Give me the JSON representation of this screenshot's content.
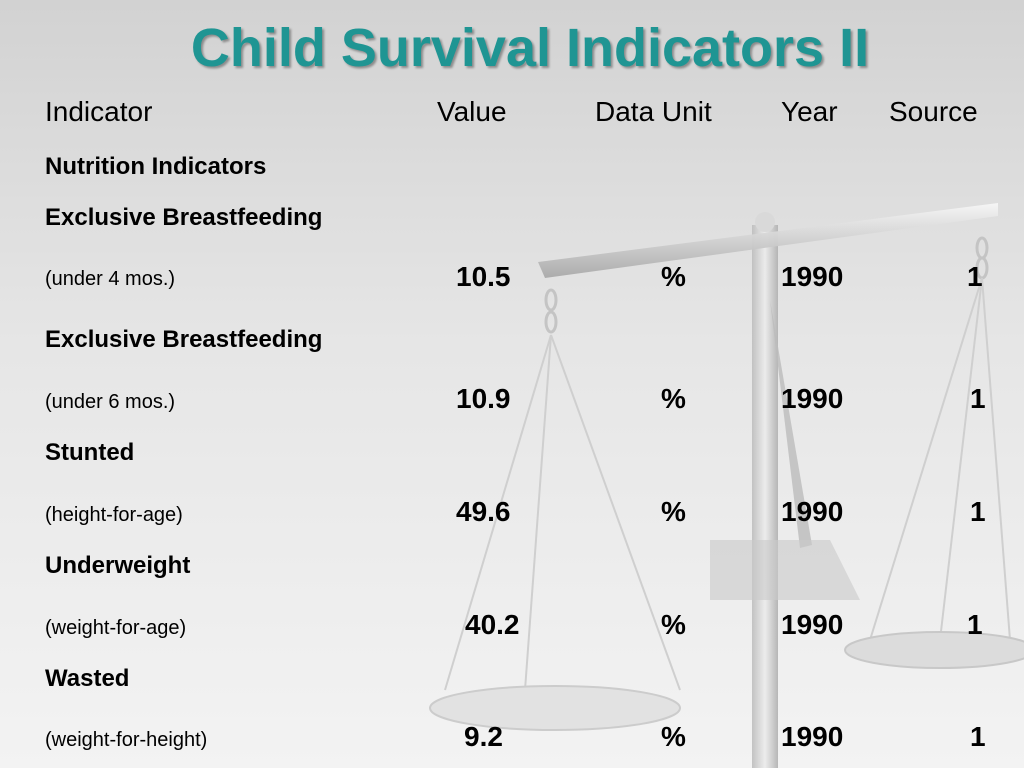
{
  "slide": {
    "title": "Child Survival Indicators II",
    "title_color": "#1f9593"
  },
  "table": {
    "headers": {
      "indicator": "Indicator",
      "value": "Value",
      "unit": "Data Unit",
      "year": "Year",
      "source": "Source"
    },
    "section": "Nutrition Indicators",
    "rows": [
      {
        "label": "Exclusive Breastfeeding",
        "sublabel": "(under 4 mos.)",
        "value": "10.5",
        "unit": "%",
        "year": "1990",
        "source": "1"
      },
      {
        "label": "Exclusive Breastfeeding",
        "sublabel": "(under 6 mos.)",
        "value": "10.9",
        "unit": "%",
        "year": "1990",
        "source": "1"
      },
      {
        "label": "Stunted",
        "sublabel": " (height-for-age)",
        "value": "49.6",
        "unit": "%",
        "year": "1990",
        "source": "1"
      },
      {
        "label": "Underweight",
        "sublabel": "(weight-for-age)",
        "value": "40.2",
        "unit": "%",
        "year": "1990",
        "source": "1"
      },
      {
        "label": "Wasted",
        "sublabel": "(weight-for-height)",
        "value": "9.2",
        "unit": "%",
        "year": "1990",
        "source": "1"
      }
    ]
  },
  "background": {
    "image": "balance-scale-icon"
  }
}
